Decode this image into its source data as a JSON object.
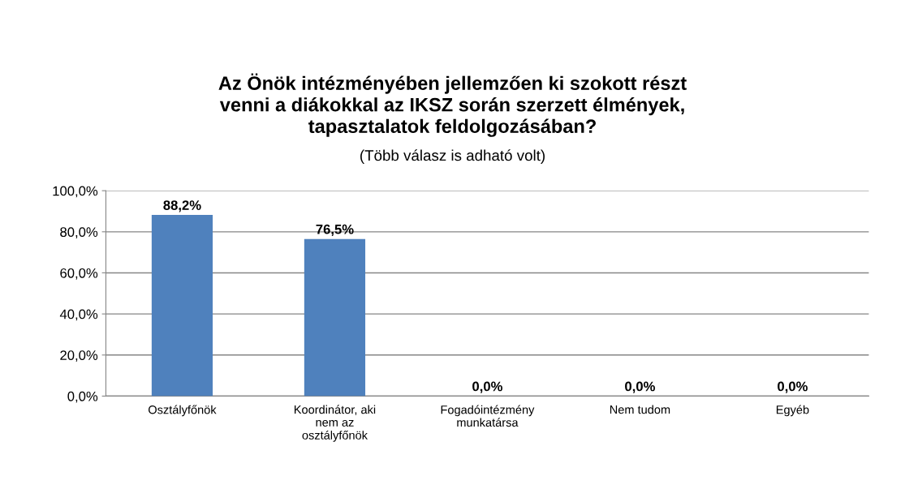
{
  "chart_data": {
    "type": "bar",
    "title": "Az Önök intézményében jellemzően ki szokott részt\nvenni a diákokkal az IKSZ során szerzett élmények,\ntapasztalatok feldolgozásában?",
    "subtitle": "(Több válasz is adható volt)",
    "categories": [
      "Osztályfőnök",
      "Koordinátor, aki\nnem az\nosztályfőnök",
      "Fogadóintézmény\nmunkatársa",
      "Nem tudom",
      "Egyéb"
    ],
    "values": [
      88.2,
      76.5,
      0.0,
      0.0,
      0.0
    ],
    "value_labels": [
      "88,2%",
      "76,5%",
      "0,0%",
      "0,0%",
      "0,0%"
    ],
    "color": "#4f81bd",
    "ylim": [
      0,
      100
    ],
    "yticks": [
      {
        "value": 0,
        "label": "0,0%"
      },
      {
        "value": 20,
        "label": "20,0%"
      },
      {
        "value": 40,
        "label": "40,0%"
      },
      {
        "value": 60,
        "label": "60,0%"
      },
      {
        "value": 80,
        "label": "80,0%"
      },
      {
        "value": 100,
        "label": "100,0%"
      }
    ],
    "grid": "y"
  }
}
